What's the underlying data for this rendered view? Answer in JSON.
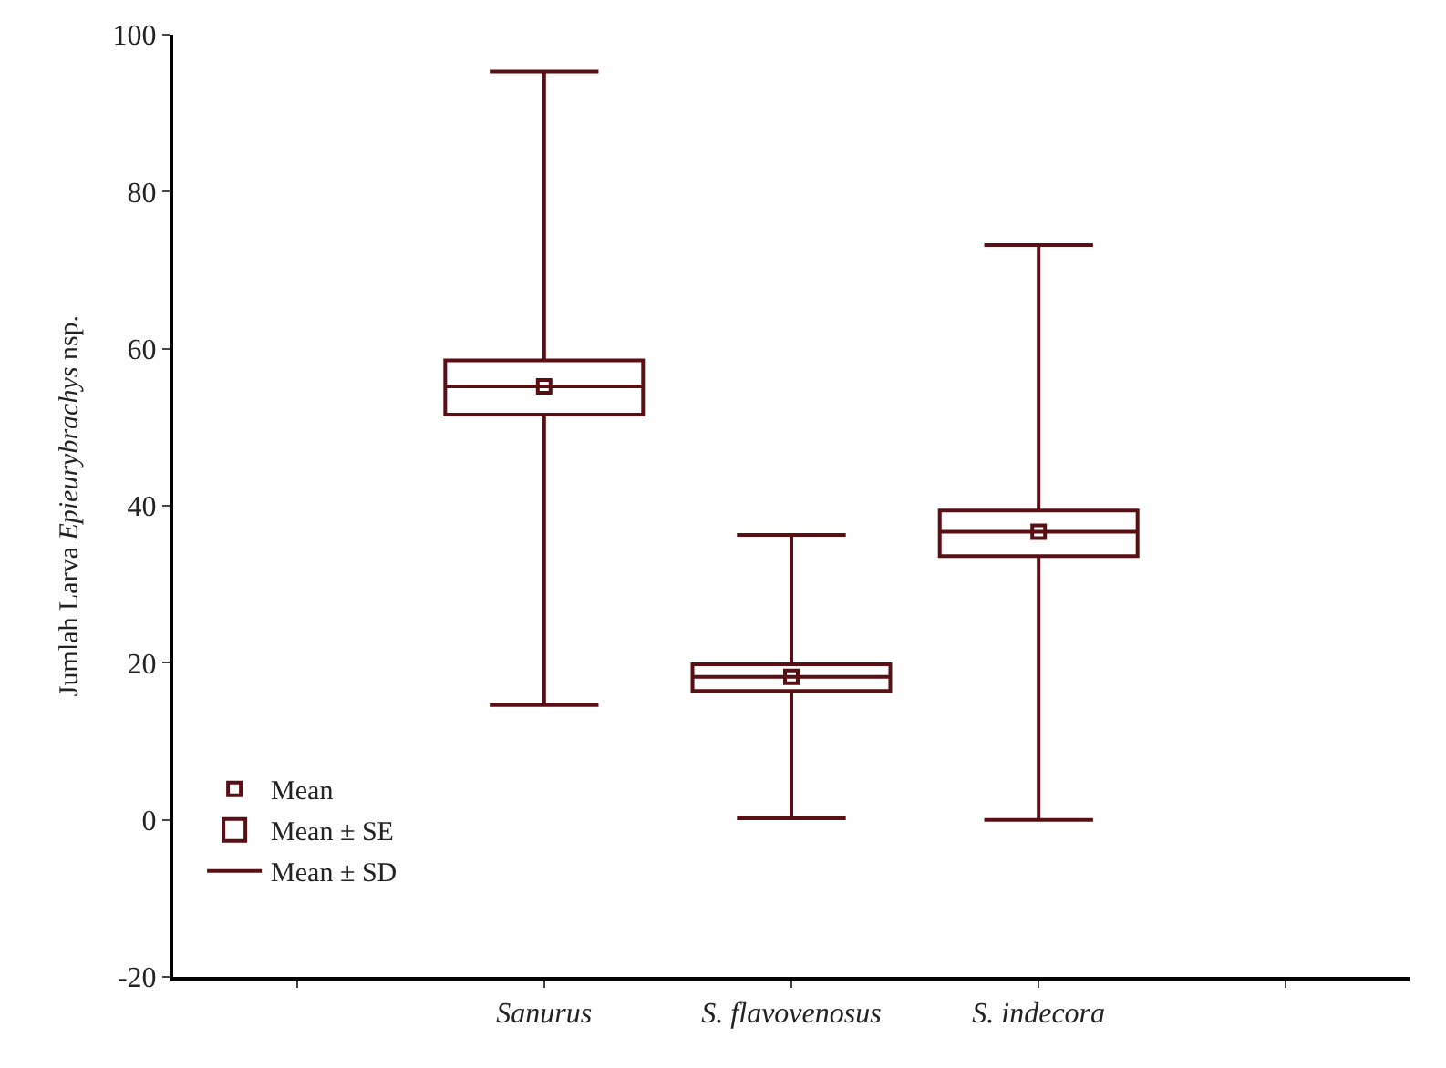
{
  "chart_data": {
    "type": "box",
    "ylabel": "Jumlah Larva $^{}$Epieurybrachys$^{}$ nsp.",
    "categories": [
      null,
      "Sanurus",
      "S. flavovenosus",
      "S. indecora",
      null
    ],
    "series": [
      {
        "name": "Mean",
        "type": "scatter",
        "color": "#5a0f14",
        "values": [
          null,
          55.2,
          18.2,
          36.7,
          null
        ]
      },
      {
        "name": "Mean ± SE",
        "color": "#5a0f14",
        "boxes": [
          null,
          {
            "low": 14.6,
            "q1": 51.6,
            "median": 55.2,
            "q3": 58.5,
            "high": 95.3
          },
          {
            "low": 0.2,
            "q1": 16.4,
            "median": 18.2,
            "q3": 19.8,
            "high": 36.3
          },
          {
            "low": 0.0,
            "q1": 33.6,
            "median": 36.7,
            "q3": 39.4,
            "high": 73.2
          },
          null
        ]
      },
      {
        "name": "Mean ± SD",
        "type": "line",
        "color": "#5a0f14",
        "values": [
          null,
          null,
          null,
          null,
          null
        ]
      }
    ],
    "ylim": [
      -20,
      100
    ],
    "yticks": [
      -20,
      0,
      20,
      40,
      60,
      80,
      100
    ],
    "marker": "square",
    "legend": "bottom left"
  }
}
